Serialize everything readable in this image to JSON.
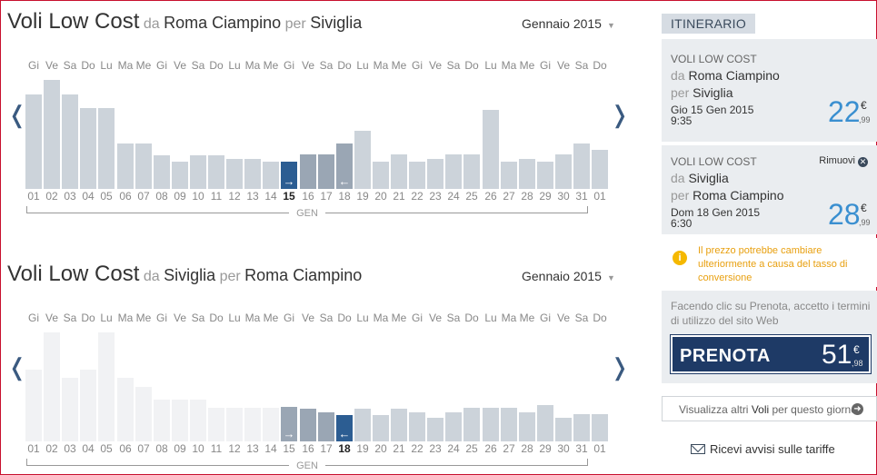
{
  "colors": {
    "bar_default": "#ccd3da",
    "bar_selected": "#2c5d92",
    "bar_selected_range": "#9aa6b4",
    "bar_ghost": "#f1f2f4",
    "price_blue": "#3a8fd0",
    "book_button": "#1e3a66",
    "warning": "#e8a010"
  },
  "weekdays": [
    "Gi",
    "Ve",
    "Sa",
    "Do",
    "Lu",
    "Ma",
    "Me",
    "Gi",
    "Ve",
    "Sa",
    "Do",
    "Lu",
    "Ma",
    "Me",
    "Gi",
    "Ve",
    "Sa",
    "Do",
    "Lu",
    "Ma",
    "Me",
    "Gi",
    "Ve",
    "Sa",
    "Do",
    "Lu",
    "Ma",
    "Me",
    "Gi",
    "Ve",
    "Sa",
    "Do"
  ],
  "dates": [
    "01",
    "02",
    "03",
    "04",
    "05",
    "06",
    "07",
    "08",
    "09",
    "10",
    "11",
    "12",
    "13",
    "14",
    "15",
    "16",
    "17",
    "18",
    "19",
    "20",
    "21",
    "22",
    "23",
    "24",
    "25",
    "26",
    "27",
    "28",
    "29",
    "30",
    "31",
    "01"
  ],
  "outbound": {
    "title": "Voli Low Cost",
    "da": "da",
    "from": "Roma Ciampino",
    "per": "per",
    "to": "Siviglia",
    "month": "Gennaio 2015",
    "month_short": "GEN",
    "prev_icon": "chevron-left-icon",
    "next_icon": "chevron-right-icon",
    "bars": [
      {
        "value": 0.84,
        "state": "default"
      },
      {
        "value": 0.97,
        "state": "default"
      },
      {
        "value": 0.84,
        "state": "default"
      },
      {
        "value": 0.72,
        "state": "default"
      },
      {
        "value": 0.72,
        "state": "default"
      },
      {
        "value": 0.4,
        "state": "default"
      },
      {
        "value": 0.4,
        "state": "default"
      },
      {
        "value": 0.3,
        "state": "default"
      },
      {
        "value": 0.24,
        "state": "default"
      },
      {
        "value": 0.3,
        "state": "default"
      },
      {
        "value": 0.3,
        "state": "default"
      },
      {
        "value": 0.27,
        "state": "default"
      },
      {
        "value": 0.27,
        "state": "default"
      },
      {
        "value": 0.24,
        "state": "default"
      },
      {
        "value": 0.24,
        "state": "selected",
        "arrow": "→"
      },
      {
        "value": 0.31,
        "state": "range"
      },
      {
        "value": 0.31,
        "state": "range"
      },
      {
        "value": 0.4,
        "state": "range",
        "arrow": "←"
      },
      {
        "value": 0.52,
        "state": "default"
      },
      {
        "value": 0.24,
        "state": "default"
      },
      {
        "value": 0.31,
        "state": "default"
      },
      {
        "value": 0.24,
        "state": "default"
      },
      {
        "value": 0.27,
        "state": "default"
      },
      {
        "value": 0.31,
        "state": "default"
      },
      {
        "value": 0.31,
        "state": "default"
      },
      {
        "value": 0.7,
        "state": "default"
      },
      {
        "value": 0.24,
        "state": "default"
      },
      {
        "value": 0.27,
        "state": "default"
      },
      {
        "value": 0.24,
        "state": "default"
      },
      {
        "value": 0.31,
        "state": "default"
      },
      {
        "value": 0.4,
        "state": "default"
      },
      {
        "value": 0.35,
        "state": "default"
      }
    ]
  },
  "return": {
    "title": "Voli Low Cost",
    "da": "da",
    "from": "Siviglia",
    "per": "per",
    "to": "Roma Ciampino",
    "month": "Gennaio 2015",
    "month_short": "GEN",
    "prev_icon": "chevron-left-icon",
    "next_icon": "chevron-right-icon",
    "bars": [
      {
        "value": 0.66,
        "state": "ghost"
      },
      {
        "value": 1.0,
        "state": "ghost"
      },
      {
        "value": 0.58,
        "state": "ghost"
      },
      {
        "value": 0.66,
        "state": "ghost"
      },
      {
        "value": 1.0,
        "state": "ghost"
      },
      {
        "value": 0.58,
        "state": "ghost"
      },
      {
        "value": 0.5,
        "state": "ghost"
      },
      {
        "value": 0.38,
        "state": "ghost"
      },
      {
        "value": 0.38,
        "state": "ghost"
      },
      {
        "value": 0.38,
        "state": "ghost"
      },
      {
        "value": 0.31,
        "state": "ghost"
      },
      {
        "value": 0.31,
        "state": "ghost"
      },
      {
        "value": 0.31,
        "state": "ghost"
      },
      {
        "value": 0.31,
        "state": "ghost"
      },
      {
        "value": 0.32,
        "state": "range",
        "arrow": "→"
      },
      {
        "value": 0.3,
        "state": "range"
      },
      {
        "value": 0.27,
        "state": "range"
      },
      {
        "value": 0.24,
        "state": "selected",
        "arrow": "←"
      },
      {
        "value": 0.3,
        "state": "default"
      },
      {
        "value": 0.24,
        "state": "default"
      },
      {
        "value": 0.3,
        "state": "default"
      },
      {
        "value": 0.27,
        "state": "default"
      },
      {
        "value": 0.22,
        "state": "default"
      },
      {
        "value": 0.27,
        "state": "default"
      },
      {
        "value": 0.31,
        "state": "default"
      },
      {
        "value": 0.31,
        "state": "default"
      },
      {
        "value": 0.31,
        "state": "default"
      },
      {
        "value": 0.27,
        "state": "default"
      },
      {
        "value": 0.33,
        "state": "default"
      },
      {
        "value": 0.22,
        "state": "default"
      },
      {
        "value": 0.25,
        "state": "default"
      },
      {
        "value": 0.25,
        "state": "default"
      }
    ]
  },
  "itinerary": {
    "tab": "ITINERARIO",
    "leg1": {
      "carrier": "VOLI LOW COST",
      "da": "da",
      "from": "Roma Ciampino",
      "per": "per",
      "to": "Siviglia",
      "date": "Gio 15 Gen 2015",
      "time": "9:35",
      "price_int": "22",
      "currency": "€",
      "price_cents": ",99"
    },
    "leg2": {
      "carrier": "VOLI LOW COST",
      "remove": "Rimuovi",
      "da": "da",
      "from": "Siviglia",
      "per": "per",
      "to": "Roma Ciampino",
      "date": "Dom 18 Gen 2015",
      "time": "6:30",
      "price_int": "28",
      "currency": "€",
      "price_cents": ",99"
    },
    "warning": "Il prezzo potrebbe cambiare ulteriormente a causa del tasso di conversione",
    "terms": "Facendo clic su Prenota, accetto i termini di utilizzo del sito Web",
    "book_label": "PRENOTA",
    "total_int": "51",
    "total_currency": "€",
    "total_cents": ",98",
    "more_pre": "Visualizza altri ",
    "more_bold": "Voli",
    "more_post": " per questo giorno",
    "alerts": "Ricevi avvisi sulle tariffe"
  }
}
